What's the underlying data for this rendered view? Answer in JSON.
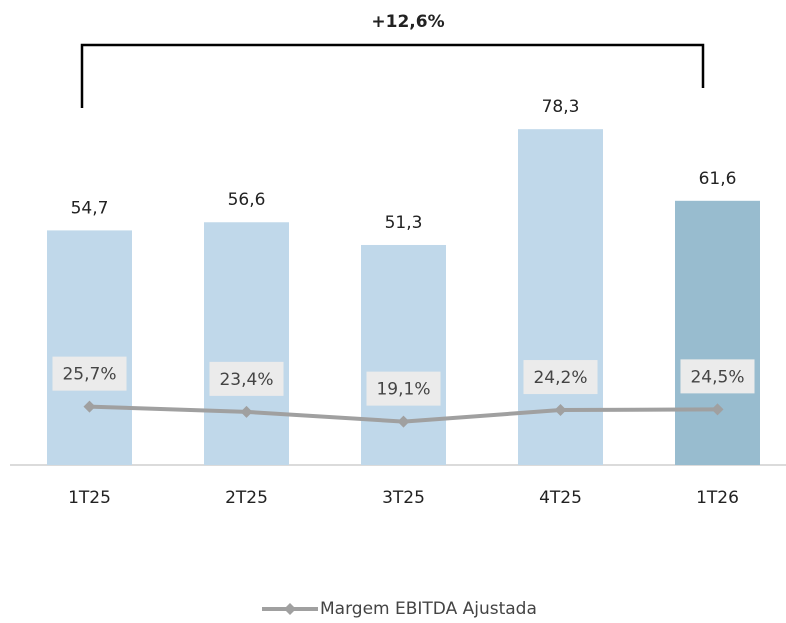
{
  "chart_data": {
    "type": "bar-line",
    "annotation": "+12,6%",
    "categories": [
      "1T25",
      "2T25",
      "3T25",
      "4T25",
      "1T26"
    ],
    "series": [
      {
        "type": "bar",
        "colors": [
          "#c0d8ea",
          "#c0d8ea",
          "#c0d8ea",
          "#c0d8ea",
          "#98bccf"
        ],
        "values": [
          54.7,
          56.6,
          51.3,
          78.3,
          61.6
        ],
        "value_labels": [
          "54,7",
          "56,6",
          "51,3",
          "78,3",
          "61,6"
        ]
      },
      {
        "type": "line",
        "name": "Margem EBITDA Ajustada",
        "color": "#a0a0a0",
        "axis": "y2",
        "values": [
          25.7,
          23.4,
          19.1,
          24.2,
          24.5
        ],
        "value_labels": [
          "25,7%",
          "23,4%",
          "19,1%",
          "24,2%",
          "24,5%"
        ]
      }
    ],
    "ylim": [
      0,
      90
    ],
    "y2lim": [
      0,
      170
    ],
    "legend": "bottom"
  }
}
